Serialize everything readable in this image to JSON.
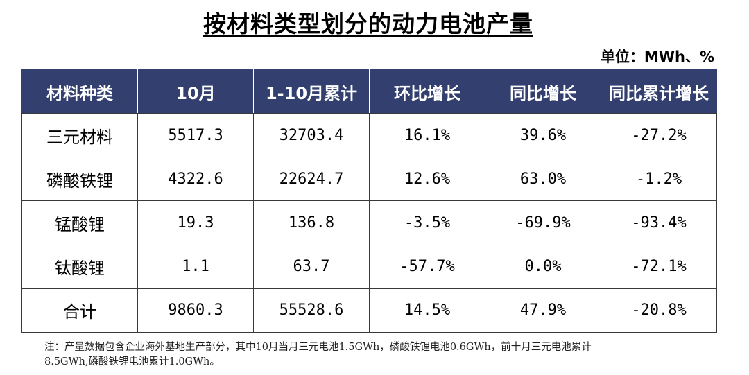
{
  "title": "按材料类型划分的动力电池产量",
  "unit": "单位：MWh、%",
  "table": {
    "headers": [
      "材料种类",
      "10月",
      "1-10月累计",
      "环比增长",
      "同比增长",
      "同比累计增长"
    ],
    "rows": [
      [
        "三元材料",
        "5517.3",
        "32703.4",
        "16.1%",
        "39.6%",
        "-27.2%"
      ],
      [
        "磷酸铁锂",
        "4322.6",
        "22624.7",
        "12.6%",
        "63.0%",
        "-1.2%"
      ],
      [
        "锰酸锂",
        "19.3",
        "136.8",
        "-3.5%",
        "-69.9%",
        "-93.4%"
      ],
      [
        "钛酸锂",
        "1.1",
        "63.7",
        "-57.7%",
        "0.0%",
        "-72.1%"
      ],
      [
        "合计",
        "9860.3",
        "55528.6",
        "14.5%",
        "47.9%",
        "-20.8%"
      ]
    ]
  },
  "note": {
    "line1": "注：产量数据包含企业海外基地生产部分，其中10月当月三元电池1.5GWh，磷酸铁锂电池0.6GWh，前十月三元电池累计",
    "line2": "8.5GWh,磷酸铁锂电池累计1.0GWh。"
  },
  "colors": {
    "header_bg": "#33406f",
    "header_text": "#ffffff",
    "border": "#3a3a3a"
  }
}
